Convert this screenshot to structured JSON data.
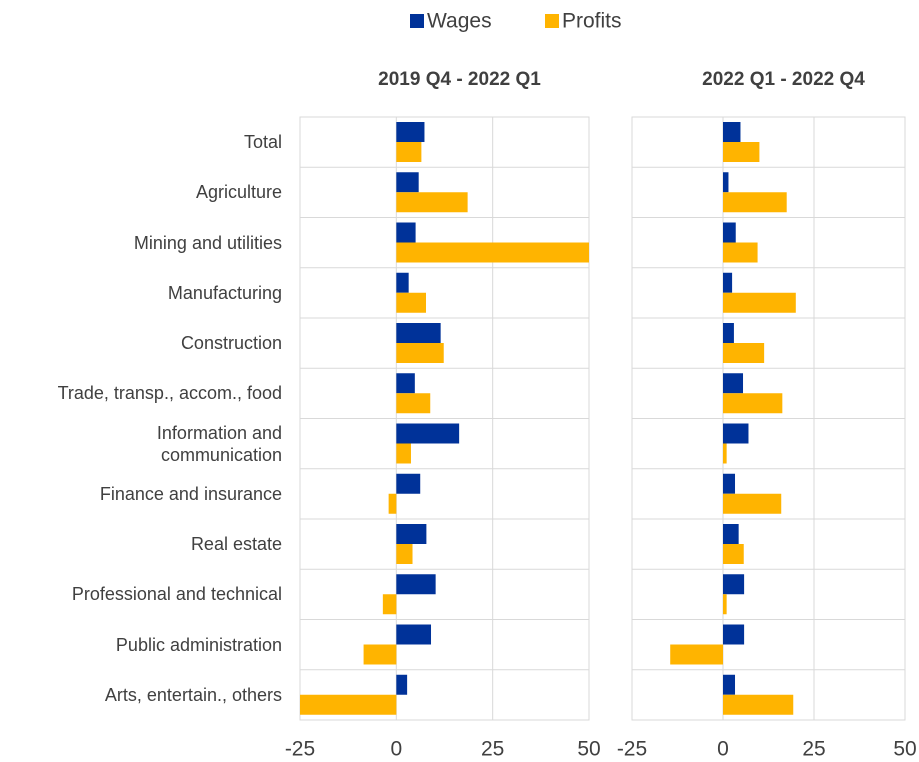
{
  "chart_data": [
    {
      "type": "bar",
      "orientation": "horizontal",
      "title": "2019 Q4 - 2022 Q1",
      "categories": [
        "Total",
        "Agriculture",
        "Mining and utilities",
        "Manufacturing",
        "Construction",
        "Trade, transp., accom., food",
        "Information and\ncommunication",
        "Finance and insurance",
        "Real estate",
        "Professional and technical",
        "Public administration",
        "Arts, entertain., others"
      ],
      "series": [
        {
          "name": "Wages",
          "color": "#003299",
          "values": [
            7.3,
            5.8,
            5,
            3.2,
            11.5,
            4.8,
            16.3,
            6.2,
            7.8,
            10.2,
            9,
            2.8
          ]
        },
        {
          "name": "Profits",
          "color": "#ffb400",
          "values": [
            6.5,
            18.5,
            50,
            7.7,
            12.3,
            8.8,
            3.8,
            -2,
            4.2,
            -3.5,
            -8.5,
            -25
          ]
        }
      ],
      "xlim": [
        -25,
        50
      ],
      "xticks": [
        -25,
        0,
        25,
        50
      ],
      "grid": true
    },
    {
      "type": "bar",
      "orientation": "horizontal",
      "title": "2022 Q1 - 2022 Q4",
      "series": [
        {
          "color": "#003299",
          "values": [
            4.8,
            1.5,
            3.5,
            2.5,
            3,
            5.5,
            7,
            3.3,
            4.3,
            5.8,
            5.8,
            3.3
          ]
        },
        {
          "color": "#ffb400",
          "values": [
            10,
            17.5,
            9.5,
            20,
            11.3,
            16.3,
            1,
            16,
            5.7,
            1,
            -14.5,
            19.3
          ]
        }
      ],
      "xlim": [
        -25,
        50
      ],
      "xticks": [
        -25,
        0,
        25,
        50
      ],
      "grid": true
    }
  ]
}
